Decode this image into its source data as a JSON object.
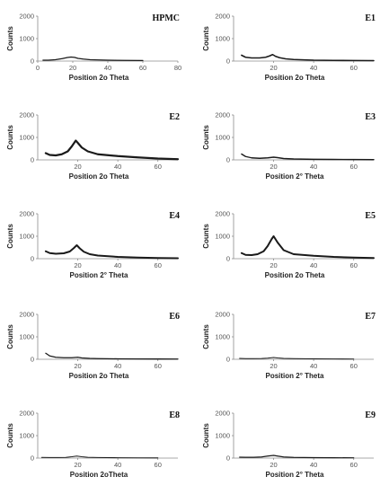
{
  "chart_data": [
    {
      "type": "line",
      "title": "HPMC",
      "xlabel": "Position 2o Theta",
      "ylabel": "Counts",
      "xlim": [
        0,
        80
      ],
      "ylim": [
        0,
        2000
      ],
      "xticks": [
        "0",
        "20",
        "40",
        "60",
        "80"
      ],
      "yticks": [
        "0",
        "1000",
        "2000"
      ],
      "x": [
        3,
        6,
        10,
        14,
        17,
        19,
        21,
        23,
        26,
        30,
        40,
        50,
        60
      ],
      "y": [
        40,
        40,
        60,
        110,
        160,
        180,
        165,
        120,
        90,
        60,
        40,
        30,
        25
      ]
    },
    {
      "type": "line",
      "title": "E1",
      "xlabel": "Position 2o Theta",
      "ylabel": "Counts",
      "xlim": [
        0,
        70
      ],
      "ylim": [
        0,
        2000
      ],
      "xticks": [
        "20",
        "40",
        "60"
      ],
      "yticks": [
        "0",
        "1000",
        "2000"
      ],
      "x": [
        4,
        6,
        9,
        13,
        16,
        18,
        19.5,
        21,
        23,
        26,
        30,
        40,
        50,
        60,
        70
      ],
      "y": [
        260,
        170,
        140,
        140,
        170,
        230,
        290,
        210,
        150,
        100,
        70,
        40,
        30,
        25,
        20
      ]
    },
    {
      "type": "line",
      "title": "E2",
      "xlabel": "Position 2o Theta",
      "ylabel": "Counts",
      "xlim": [
        0,
        70
      ],
      "ylim": [
        0,
        2000
      ],
      "xticks": [
        "20",
        "40",
        "60"
      ],
      "yticks": [
        "0",
        "1000",
        "2000"
      ],
      "x": [
        4,
        6,
        9,
        12,
        15,
        17,
        19,
        20,
        22,
        25,
        30,
        40,
        50,
        60,
        70
      ],
      "y": [
        300,
        220,
        200,
        250,
        380,
        600,
        860,
        760,
        550,
        380,
        250,
        170,
        110,
        60,
        30
      ]
    },
    {
      "type": "line",
      "title": "E3",
      "xlabel": "Position 2° Theta",
      "ylabel": "Counts",
      "xlim": [
        0,
        70
      ],
      "ylim": [
        0,
        2000
      ],
      "xticks": [
        "20",
        "40",
        "60"
      ],
      "yticks": [
        "0",
        "1000",
        "2000"
      ],
      "x": [
        4,
        6,
        9,
        13,
        17,
        20,
        22,
        25,
        30,
        40,
        50,
        60,
        70
      ],
      "y": [
        260,
        150,
        90,
        70,
        90,
        120,
        100,
        60,
        40,
        25,
        20,
        15,
        10
      ]
    },
    {
      "type": "line",
      "title": "E4",
      "xlabel": "Position 2° Theta",
      "ylabel": "Counts",
      "xlim": [
        0,
        70
      ],
      "ylim": [
        0,
        2000
      ],
      "xticks": [
        "20",
        "40",
        "60"
      ],
      "yticks": [
        "0",
        "1000",
        "2000"
      ],
      "x": [
        4,
        6,
        9,
        13,
        16,
        18,
        19.5,
        21,
        23,
        26,
        30,
        40,
        50,
        60,
        70
      ],
      "y": [
        330,
        250,
        220,
        240,
        320,
        470,
        600,
        460,
        310,
        200,
        140,
        80,
        50,
        30,
        20
      ]
    },
    {
      "type": "line",
      "title": "E5",
      "xlabel": "Position 2o Theta",
      "ylabel": "Counts",
      "xlim": [
        0,
        70
      ],
      "ylim": [
        0,
        2000
      ],
      "xticks": [
        "20",
        "40",
        "60"
      ],
      "yticks": [
        "0",
        "1000",
        "2000"
      ],
      "x": [
        4,
        6,
        9,
        12,
        15,
        17,
        19,
        20,
        22,
        25,
        30,
        40,
        50,
        60,
        70
      ],
      "y": [
        250,
        170,
        160,
        200,
        330,
        560,
        870,
        1000,
        720,
        380,
        200,
        130,
        80,
        50,
        30
      ]
    },
    {
      "type": "line",
      "title": "E6",
      "xlabel": "Position 2o Theta",
      "ylabel": "Counts",
      "xlim": [
        0,
        70
      ],
      "ylim": [
        0,
        2000
      ],
      "xticks": [
        "20",
        "40",
        "60"
      ],
      "yticks": [
        "0",
        "1000",
        "2000"
      ],
      "x": [
        4,
        6,
        9,
        13,
        17,
        20,
        22,
        26,
        30,
        40,
        50,
        60,
        70
      ],
      "y": [
        270,
        150,
        90,
        70,
        70,
        90,
        60,
        40,
        30,
        20,
        15,
        12,
        10
      ]
    },
    {
      "type": "line",
      "title": "E7",
      "xlabel": "Position 2° Theta",
      "ylabel": "Counts",
      "xlim": [
        0,
        70
      ],
      "ylim": [
        0,
        2000
      ],
      "xticks": [
        "20",
        "40",
        "60"
      ],
      "yticks": [
        "0",
        "1000",
        "2000"
      ],
      "x": [
        3,
        6,
        10,
        14,
        17,
        20,
        22,
        25,
        30,
        40,
        50,
        60
      ],
      "y": [
        40,
        30,
        30,
        35,
        50,
        80,
        60,
        40,
        30,
        20,
        15,
        10
      ]
    },
    {
      "type": "line",
      "title": "E8",
      "xlabel": "Position 2oTheta",
      "ylabel": "Counts",
      "xlim": [
        0,
        70
      ],
      "ylim": [
        0,
        2000
      ],
      "xticks": [
        "20",
        "40",
        "60"
      ],
      "yticks": [
        "0",
        "1000",
        "2000"
      ],
      "x": [
        2,
        6,
        10,
        14,
        17,
        19.5,
        22,
        25,
        30,
        40,
        50,
        60
      ],
      "y": [
        30,
        25,
        25,
        30,
        60,
        90,
        60,
        35,
        25,
        15,
        10,
        8
      ]
    },
    {
      "type": "line",
      "title": "E9",
      "xlabel": "Position 2° Theta",
      "ylabel": "Counts",
      "xlim": [
        0,
        70
      ],
      "ylim": [
        0,
        2000
      ],
      "xticks": [
        "20",
        "40",
        "60"
      ],
      "yticks": [
        "0",
        "1000",
        "2000"
      ],
      "x": [
        3,
        6,
        10,
        14,
        17,
        20,
        22,
        25,
        30,
        40,
        50,
        60
      ],
      "y": [
        40,
        35,
        35,
        50,
        90,
        120,
        90,
        50,
        30,
        20,
        15,
        12
      ]
    }
  ]
}
